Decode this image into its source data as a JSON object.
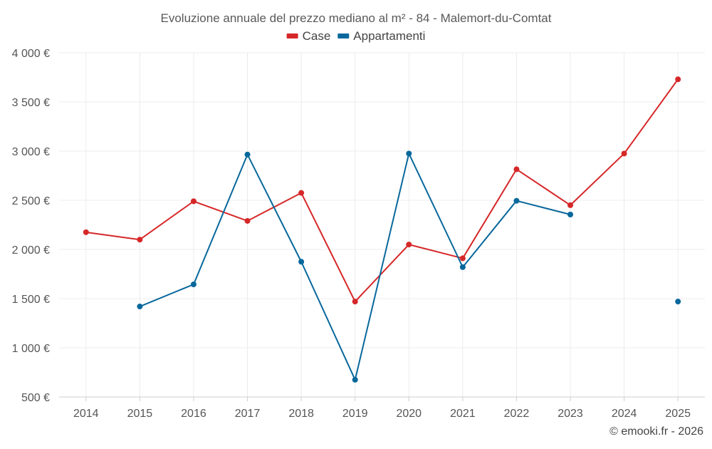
{
  "chart_data": {
    "type": "line",
    "title": "Evoluzione annuale del prezzo mediano al m² - 84 - Malemort-du-Comtat",
    "categories": [
      "2014",
      "2015",
      "2016",
      "2017",
      "2018",
      "2019",
      "2020",
      "2021",
      "2022",
      "2023",
      "2024",
      "2025"
    ],
    "ylim": [
      500,
      4000
    ],
    "yticks": [
      500,
      1000,
      1500,
      2000,
      2500,
      3000,
      3500,
      4000
    ],
    "ytick_labels": [
      "500 €",
      "1 000 €",
      "1 500 €",
      "2 000 €",
      "2 500 €",
      "3 000 €",
      "3 500 €",
      "4 000 €"
    ],
    "legend_position": "top-center",
    "grid": true,
    "series": [
      {
        "name": "Case",
        "color": "#d62728",
        "values": [
          2175,
          2100,
          2490,
          2290,
          2575,
          1470,
          2050,
          1910,
          2815,
          2450,
          2975,
          3730
        ]
      },
      {
        "name": "Appartamenti",
        "color": "#08689c",
        "values": [
          null,
          1420,
          1645,
          2965,
          1875,
          675,
          2975,
          1820,
          2495,
          2355,
          null,
          1470
        ]
      }
    ],
    "credit": "© emooki.fr - 2026"
  }
}
